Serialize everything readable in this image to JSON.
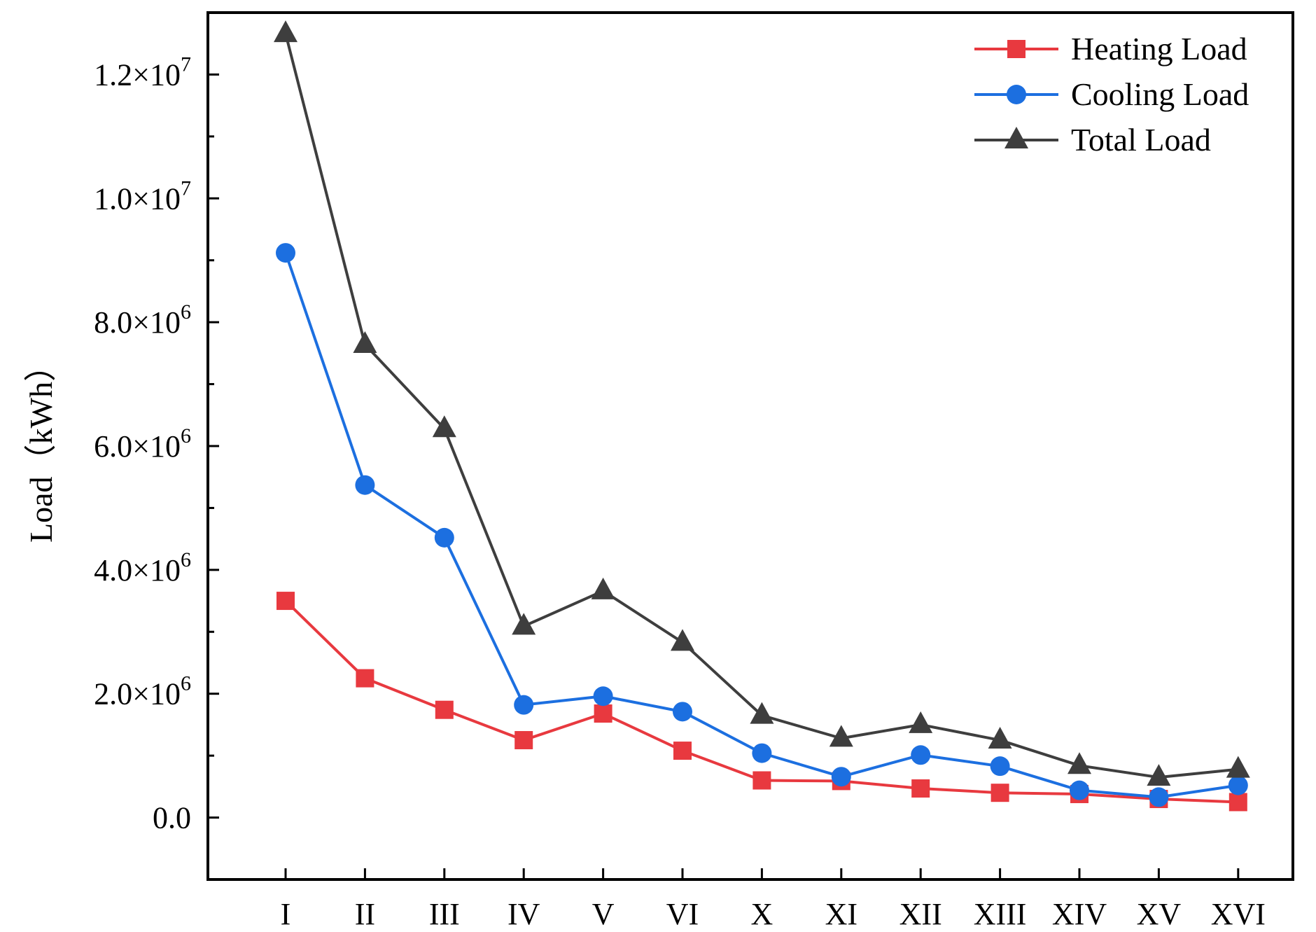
{
  "chart_data": {
    "type": "line",
    "title": "",
    "xlabel": "",
    "ylabel": "Load（kWh）",
    "categories": [
      "I",
      "II",
      "III",
      "IV",
      "V",
      "VI",
      "X",
      "XI",
      "XII",
      "XIII",
      "XIV",
      "XV",
      "XVI"
    ],
    "ylim": [
      -1000000,
      13000000
    ],
    "y_ticks": [
      {
        "value": 0,
        "mantissa": "0.0",
        "times": "",
        "exp": ""
      },
      {
        "value": 2000000,
        "mantissa": "2.0",
        "times": "×10",
        "exp": "6"
      },
      {
        "value": 4000000,
        "mantissa": "4.0",
        "times": "×10",
        "exp": "6"
      },
      {
        "value": 6000000,
        "mantissa": "6.0",
        "times": "×10",
        "exp": "6"
      },
      {
        "value": 8000000,
        "mantissa": "8.0",
        "times": "×10",
        "exp": "6"
      },
      {
        "value": 10000000,
        "mantissa": "1.0",
        "times": "×10",
        "exp": "7"
      },
      {
        "value": 12000000,
        "mantissa": "1.2",
        "times": "×10",
        "exp": "7"
      }
    ],
    "y_minor_ticks": [
      1000000,
      3000000,
      5000000,
      7000000,
      9000000,
      11000000
    ],
    "grid": false,
    "legend_position": "top-right",
    "series": [
      {
        "name": "Heating Load",
        "color": "#e8393f",
        "marker": "square",
        "values": [
          3500000,
          2250000,
          1740000,
          1250000,
          1680000,
          1080000,
          600000,
          590000,
          470000,
          400000,
          380000,
          300000,
          250000
        ]
      },
      {
        "name": "Cooling Load",
        "color": "#1c6fe0",
        "marker": "circle",
        "values": [
          9120000,
          5370000,
          4520000,
          1820000,
          1960000,
          1710000,
          1040000,
          660000,
          1010000,
          830000,
          440000,
          330000,
          520000
        ]
      },
      {
        "name": "Total Load",
        "color": "#3e3e3e",
        "marker": "triangle",
        "values": [
          12660000,
          7640000,
          6280000,
          3090000,
          3660000,
          2830000,
          1650000,
          1280000,
          1500000,
          1250000,
          840000,
          650000,
          780000
        ]
      }
    ]
  }
}
